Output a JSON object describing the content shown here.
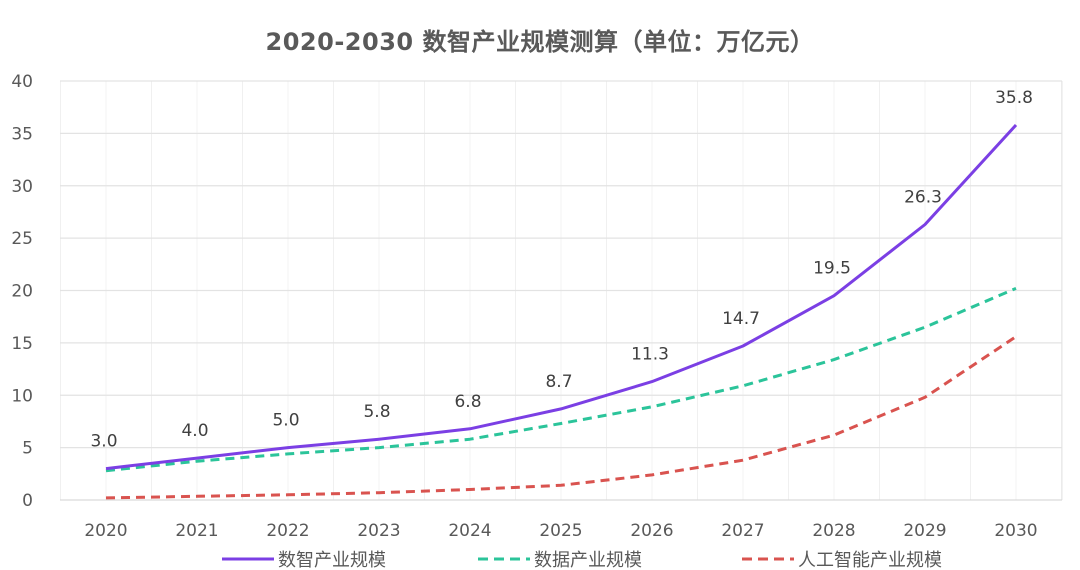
{
  "chart_data": {
    "type": "line",
    "title": "2020-2030 数智产业规模测算（单位：万亿元）",
    "xlabel": "",
    "ylabel": "",
    "x": [
      "2020",
      "2021",
      "2022",
      "2023",
      "2024",
      "2025",
      "2026",
      "2027",
      "2028",
      "2029",
      "2030"
    ],
    "ylim": [
      0,
      40
    ],
    "yticks": [
      "0",
      "5",
      "10",
      "15",
      "20",
      "25",
      "30",
      "35",
      "40"
    ],
    "grid": true,
    "legend_position": "bottom",
    "series": [
      {
        "name": "数智产业规模",
        "color": "#7b3fe4",
        "style": "solid",
        "values": [
          3.0,
          4.0,
          5.0,
          5.8,
          6.8,
          8.7,
          11.3,
          14.7,
          19.5,
          26.3,
          35.8
        ],
        "data_labels": [
          "3.0",
          "4.0",
          "5.0",
          "5.8",
          "6.8",
          "8.7",
          "11.3",
          "14.7",
          "19.5",
          "26.3",
          "35.8"
        ]
      },
      {
        "name": "数据产业规模",
        "color": "#2bc49a",
        "style": "dashed",
        "values": [
          2.8,
          3.7,
          4.4,
          5.0,
          5.8,
          7.3,
          8.9,
          10.9,
          13.4,
          16.5,
          20.2
        ]
      },
      {
        "name": "人工智能产业规模",
        "color": "#d9534f",
        "style": "dashed",
        "values": [
          0.2,
          0.35,
          0.5,
          0.7,
          1.0,
          1.4,
          2.4,
          3.8,
          6.2,
          9.8,
          15.6
        ]
      }
    ]
  }
}
